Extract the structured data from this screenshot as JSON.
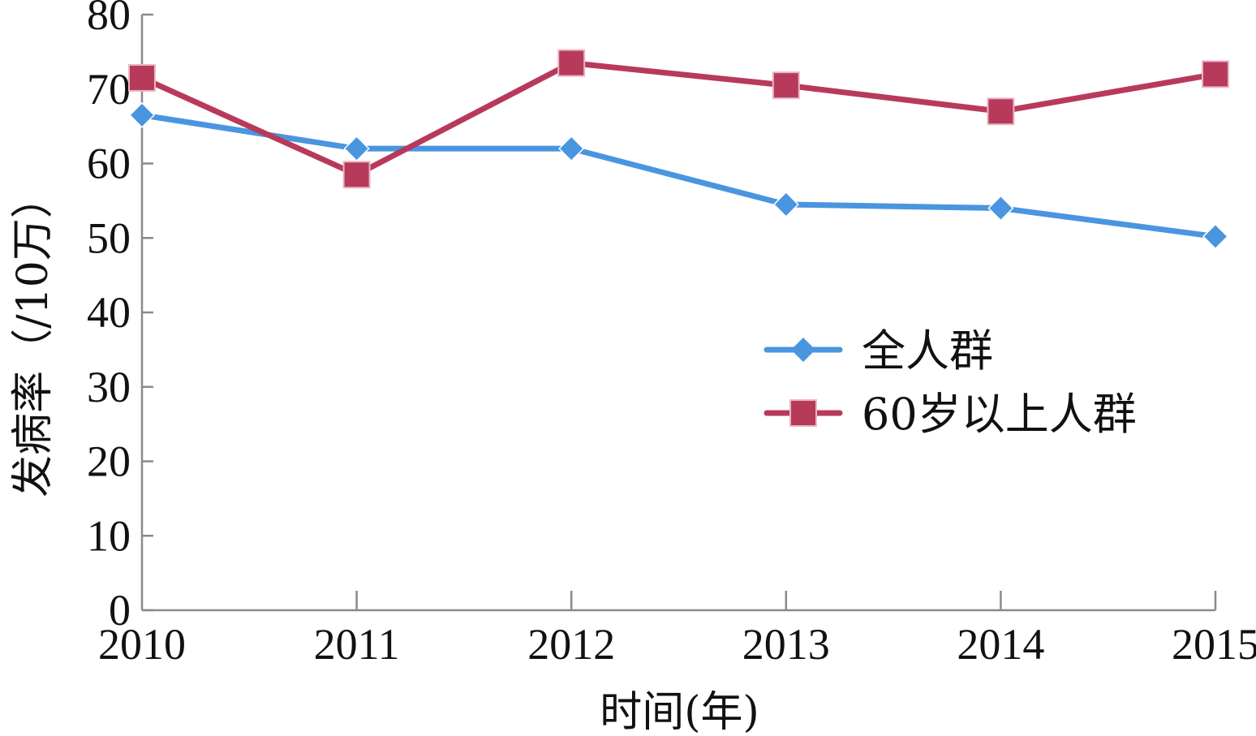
{
  "chart_data": {
    "type": "line",
    "title": "",
    "xlabel": "时间(年)",
    "ylabel": "发病率（/10万）",
    "categories": [
      "2010",
      "2011",
      "2012",
      "2013",
      "2014",
      "2015"
    ],
    "ylim": [
      0,
      80
    ],
    "yticks": [
      "0",
      "10",
      "20",
      "30",
      "40",
      "50",
      "60",
      "70",
      "80"
    ],
    "grid": false,
    "legend_position": "right",
    "series": [
      {
        "name": "全人群",
        "values": [
          66.5,
          62,
          62,
          54.5,
          54,
          50.2
        ],
        "color": "#4a95e0",
        "marker": "diamond"
      },
      {
        "name": "60岁以上人群",
        "values": [
          71.5,
          58.5,
          73.5,
          70.5,
          67,
          72
        ],
        "color": "#b83a5a",
        "marker": "square"
      }
    ]
  }
}
